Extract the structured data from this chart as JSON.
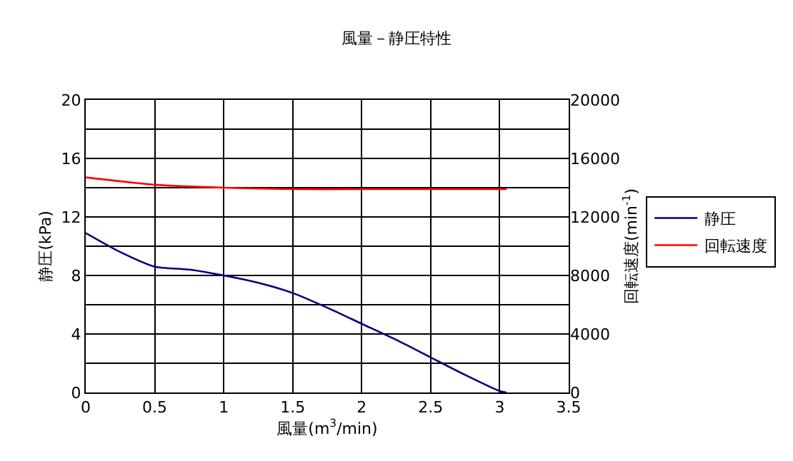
{
  "chart_data": {
    "type": "line",
    "title": "風量－静圧特性",
    "xlabel": "風量(m$^{3}$/min)",
    "ylabel": "静圧(kPa)",
    "y2label": "回転速度(min$^{-1}$)",
    "xlim": [
      0,
      3.5
    ],
    "xticks": [
      0,
      0.5,
      1,
      1.5,
      2,
      2.5,
      3,
      3.5
    ],
    "ylim": [
      0,
      20
    ],
    "yticks": [
      0,
      {
        "value": 2,
        "label": null
      },
      4,
      {
        "value": 6,
        "label": null
      },
      8,
      {
        "value": 10,
        "label": null
      },
      12,
      {
        "value": 14,
        "label": null
      },
      16,
      {
        "value": 18,
        "label": null
      },
      20
    ],
    "y2lim": [
      0,
      20000
    ],
    "y2ticks": [
      0,
      4000,
      8000,
      12000,
      16000,
      20000
    ],
    "grid": true,
    "legend": "right",
    "marker": "none",
    "line_style": "solid",
    "series": [
      {
        "name": "静圧",
        "color": "#000080",
        "x": [
          0,
          0.25,
          0.5,
          0.75,
          1.0,
          1.25,
          1.5,
          1.75,
          2.0,
          2.25,
          2.5,
          2.75,
          3.0,
          3.05
        ],
        "values": [
          10.9,
          9.6,
          8.6,
          8.4,
          8.0,
          7.5,
          6.8,
          5.8,
          4.7,
          3.6,
          2.4,
          1.2,
          0.1,
          0
        ]
      },
      {
        "name": "回転速度",
        "color": "#ff0000",
        "axis": "y2",
        "x": [
          0,
          0.5,
          1.0,
          1.5,
          2.0,
          2.5,
          3.05
        ],
        "values": [
          14700,
          14200,
          14000,
          13900,
          13900,
          13900,
          13900
        ]
      }
    ]
  }
}
